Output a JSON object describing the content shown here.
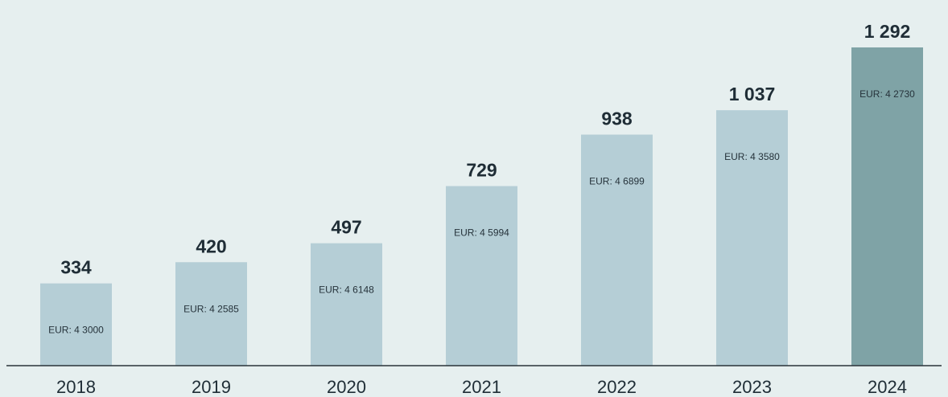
{
  "chart_data": {
    "type": "bar",
    "categories": [
      "2018",
      "2019",
      "2020",
      "2021",
      "2022",
      "2023",
      "2024"
    ],
    "values": [
      334,
      420,
      497,
      729,
      938,
      1037,
      1292
    ],
    "value_labels": [
      "334",
      "420",
      "497",
      "729",
      "938",
      "1 037",
      "1 292"
    ],
    "bar_notes": [
      "EUR: 4 3000",
      "EUR: 4 2585",
      "EUR: 4 6148",
      "EUR: 4 5994",
      "EUR: 4 6899",
      "EUR: 4 3580",
      "EUR: 4 2730"
    ],
    "title": "",
    "xlabel": "",
    "ylabel": "",
    "ylim": [
      0,
      1292
    ],
    "grid": false,
    "legend": "none",
    "colors": {
      "background": "#e6efef",
      "bar": "#b5ced6",
      "highlight_bar": "#7fa3a6",
      "axis": "#2a3338",
      "text": "#1f2d36"
    },
    "highlight_category": "2024"
  }
}
